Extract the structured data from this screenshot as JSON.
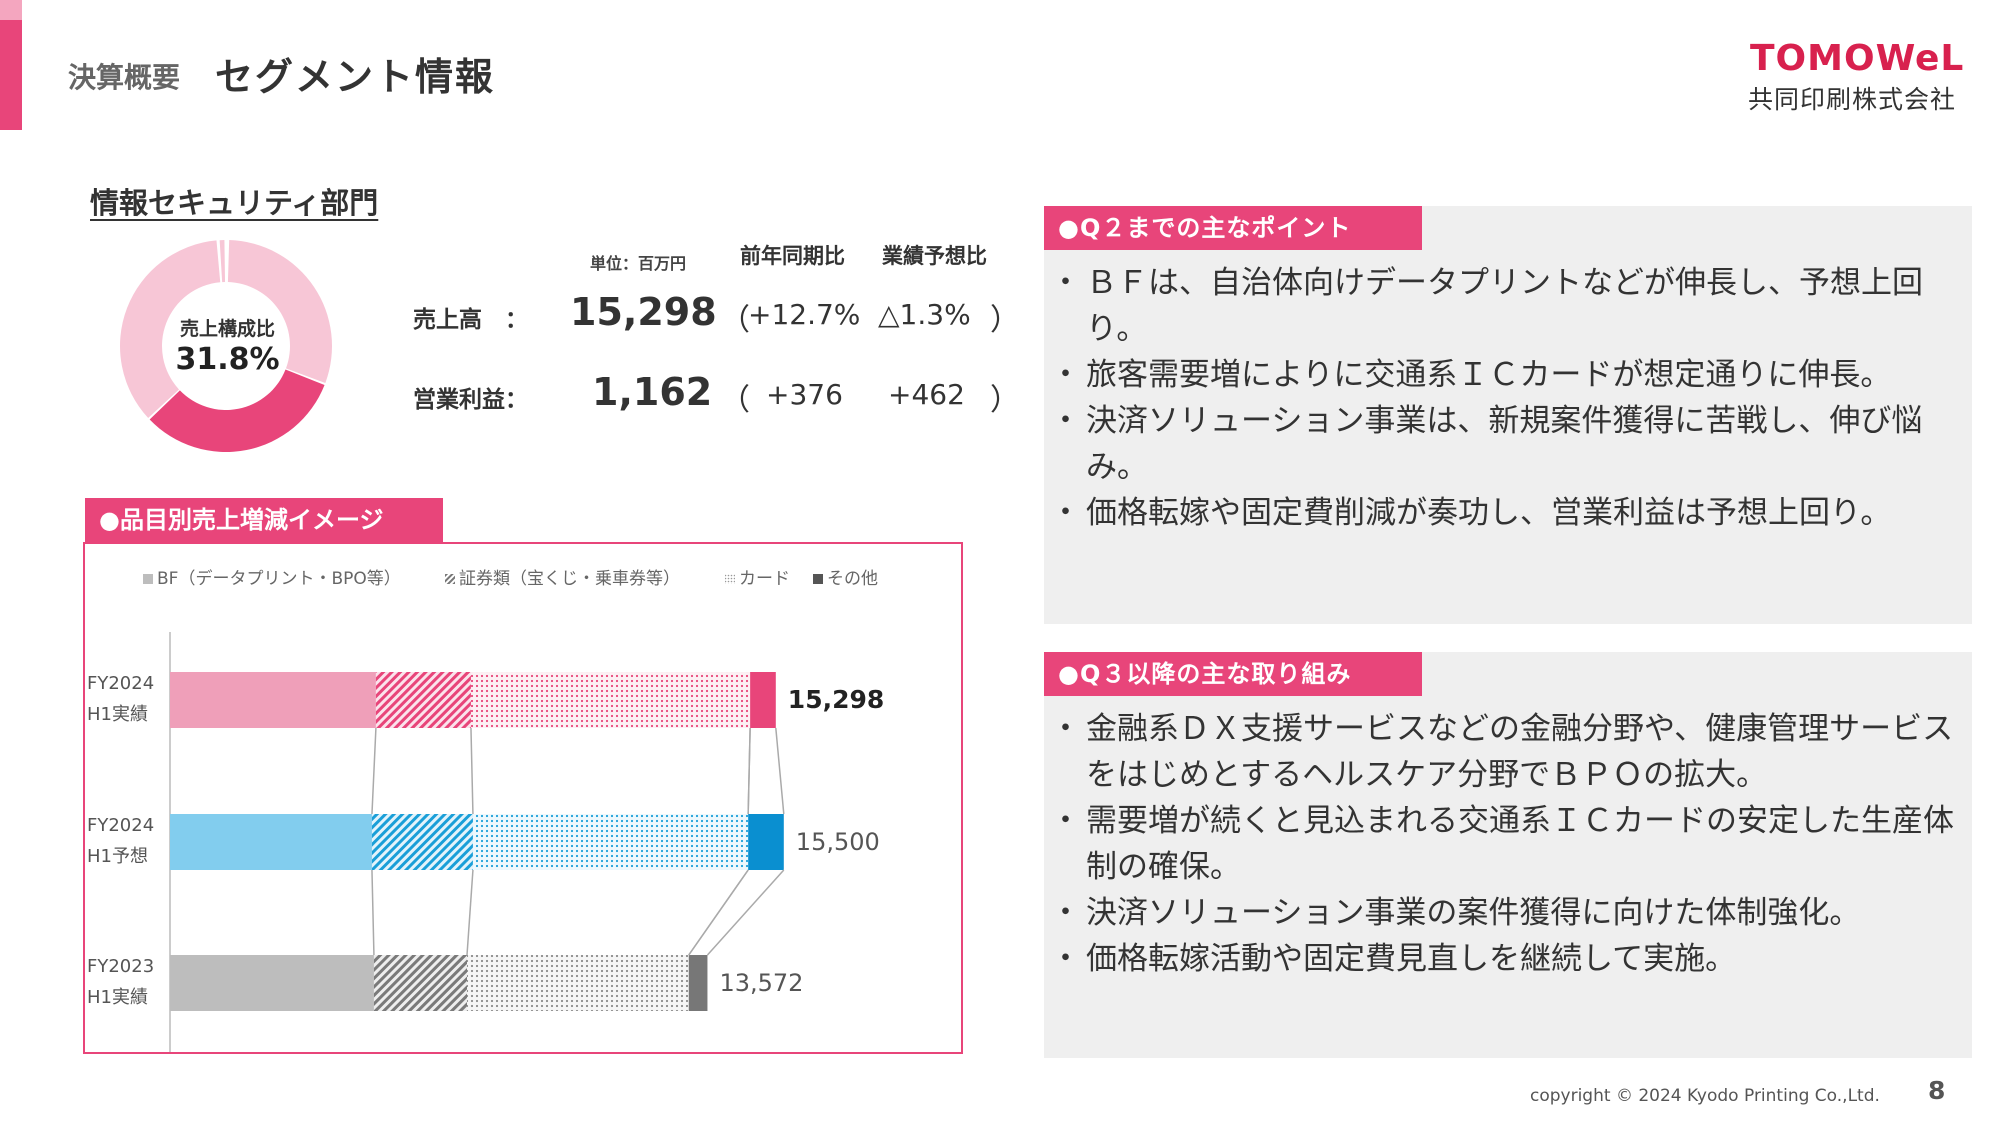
{
  "header": {
    "breadcrumb": "決算概要",
    "title": "セグメント情報",
    "logo_text": "TOMOWeL",
    "company": "共同印刷株式会社"
  },
  "section": {
    "title": "情報セキュリティ部門",
    "donut_label": "売上構成比",
    "donut_value": "31.8%",
    "donut_share": 31.8
  },
  "kpi": {
    "unit": "単位：百万円",
    "col_yoy": "前年同期比",
    "col_forecast": "業績予想比",
    "sales_label": "売上高　：",
    "sales_value": "15,298",
    "sales_yoy": "+12.7%",
    "sales_forecast": "△1.3%",
    "op_label": "営業利益：",
    "op_value": "1,162",
    "op_yoy": "+376",
    "op_forecast": "+462",
    "paren_open": "（",
    "paren_close": "）"
  },
  "chart_box": {
    "tag": "●品目別売上増減イメージ"
  },
  "chart_data": {
    "type": "bar",
    "orientation": "horizontal",
    "stacked": true,
    "categories": [
      "FY2024 H1実績",
      "FY2024 H1予想",
      "FY2023 H1実績"
    ],
    "category_lines": [
      [
        "FY2024",
        "H1実績"
      ],
      [
        "FY2024",
        "H1予想"
      ],
      [
        "FY2023",
        "H1実績"
      ]
    ],
    "series": [
      {
        "name": "BF（データプリント・BPO等）",
        "values": [
          5200,
          5100,
          5150
        ]
      },
      {
        "name": "証券類（宝くじ・乗車券等）",
        "values": [
          2400,
          2550,
          2350
        ]
      },
      {
        "name": "カード",
        "values": [
          7050,
          6950,
          5600
        ]
      },
      {
        "name": "その他",
        "values": [
          648,
          900,
          472
        ]
      }
    ],
    "totals": [
      "15,298",
      "15,500",
      "13,572"
    ],
    "total_values": [
      15298,
      15500,
      13572
    ],
    "colors": [
      [
        "#ef9fb9",
        "#e8457a",
        "#e8457a",
        "#e8457a"
      ],
      [
        "#82cdee",
        "#1a9fd8",
        "#1a9fd8",
        "#0a8fd0"
      ],
      [
        "#bdbdbd",
        "#8a8a8a",
        "#8a8a8a",
        "#777777"
      ]
    ],
    "legend_position": "top",
    "grid": false,
    "connector_lines": true
  },
  "panel_q2": {
    "tag": "●Q２までの主なポイント",
    "items": [
      "ＢＦは、自治体向けデータプリントなどが伸長し、予想上回り。",
      "旅客需要増によりに交通系ＩＣカードが想定通りに伸長。",
      "決済ソリューション事業は、新規案件獲得に苦戦し、伸び悩み。",
      "価格転嫁や固定費削減が奏功し、営業利益は予想上回り。"
    ]
  },
  "panel_q3": {
    "tag": "●Q３以降の主な取り組み",
    "items": [
      "金融系ＤＸ支援サービスなどの金融分野や、健康管理サービスをはじめとするヘルスケア分野でＢＰＯの拡大。",
      "需要増が続くと見込まれる交通系ＩＣカードの安定した生産体制の確保。",
      "決済ソリューション事業の案件獲得に向けた体制強化。",
      "価格転嫁活動や固定費見直しを継続して実施。"
    ]
  },
  "footer": {
    "copyright": "copyright © 2024 Kyodo Printing Co.,Ltd.",
    "page": "8"
  }
}
